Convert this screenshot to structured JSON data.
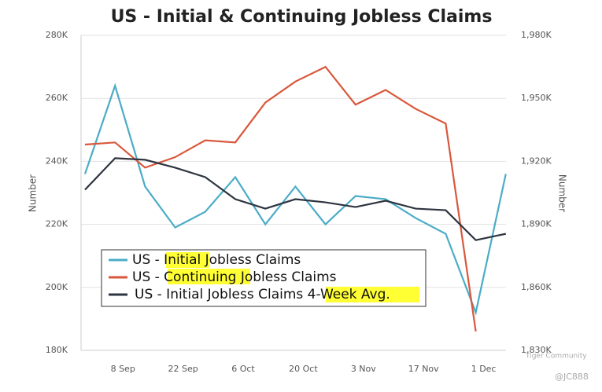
{
  "chart_data": {
    "type": "line",
    "title": "US - Initial & Continuing Jobless Claims",
    "y_label": "Number",
    "y2_label": "Number",
    "categories": [
      null,
      "8 Sep",
      null,
      "22 Sep",
      null,
      "6 Oct",
      null,
      "20 Oct",
      null,
      "3 Nov",
      null,
      "17 Nov",
      null,
      "1 Dec",
      null
    ],
    "series": [
      {
        "name": "US - Initial Jobless Claims",
        "color": "#4bacc6",
        "values": [
          236,
          264,
          232,
          219,
          224,
          235,
          220,
          232,
          220,
          229,
          228,
          222,
          217,
          192,
          236
        ]
      },
      {
        "name": "US - Continuing Jobless Claims",
        "color": "#d9573b",
        "axis": "y2",
        "values": [
          1928,
          1929,
          1917,
          1922,
          1930,
          1929,
          1948,
          1958,
          1965,
          1947,
          1954,
          1945,
          1938,
          1839,
          null
        ]
      },
      {
        "name": "US - Initial Jobless Claims 4-Week Avg.",
        "color": "#2e3440",
        "values": [
          231,
          241,
          240.5,
          238,
          235,
          228,
          225,
          228,
          227,
          225.5,
          227.5,
          225,
          224.5,
          215,
          217
        ]
      }
    ],
    "ylim": [
      180,
      280
    ],
    "yticks": [
      {
        "value": 180,
        "label": "180K"
      },
      {
        "value": 200,
        "label": "200K"
      },
      {
        "value": 220,
        "label": "220K"
      },
      {
        "value": 240,
        "label": "240K"
      },
      {
        "value": 260,
        "label": "260K"
      },
      {
        "value": 280,
        "label": "280K"
      }
    ],
    "y2lim": [
      1830,
      1980
    ],
    "y2ticks": [
      {
        "value": 1830,
        "label": "1,830K"
      },
      {
        "value": 1860,
        "label": "1,860K"
      },
      {
        "value": 1890,
        "label": "1,890K"
      },
      {
        "value": 1920,
        "label": "1,920K"
      },
      {
        "value": 1950,
        "label": "1,950K"
      },
      {
        "value": 1980,
        "label": "1,980K"
      }
    ],
    "grid": true,
    "watermark": [
      "Tiger Community",
      "@JC888"
    ]
  }
}
